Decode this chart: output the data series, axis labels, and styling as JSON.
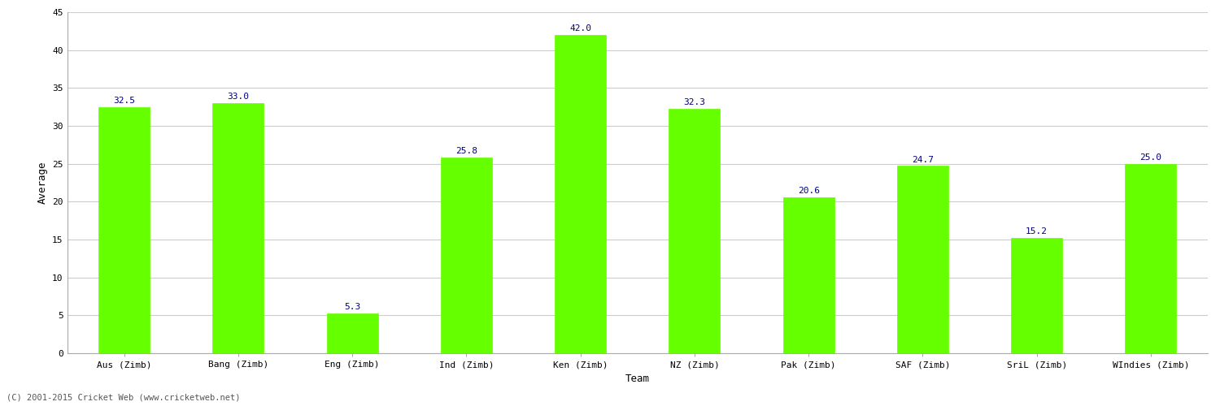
{
  "xlabel": "Team",
  "ylabel": "Average",
  "categories": [
    "Aus (Zimb)",
    "Bang (Zimb)",
    "Eng (Zimb)",
    "Ind (Zimb)",
    "Ken (Zimb)",
    "NZ (Zimb)",
    "Pak (Zimb)",
    "SAF (Zimb)",
    "SriL (Zimb)",
    "WIndies (Zimb)"
  ],
  "values": [
    32.5,
    33.0,
    5.3,
    25.8,
    42.0,
    32.3,
    20.6,
    24.7,
    15.2,
    25.0
  ],
  "bar_color": "#66ff00",
  "bar_edge_color": "#66ff00",
  "label_color": "#000080",
  "label_fontsize": 8,
  "ylim": [
    0,
    45
  ],
  "yticks": [
    0,
    5,
    10,
    15,
    20,
    25,
    30,
    35,
    40,
    45
  ],
  "grid_color": "#cccccc",
  "background_color": "#ffffff",
  "figure_background": "#ffffff",
  "axis_label_fontsize": 9,
  "tick_label_fontsize": 8,
  "bar_width": 0.45,
  "footer_text": "(C) 2001-2015 Cricket Web (www.cricketweb.net)",
  "footer_fontsize": 7.5,
  "footer_color": "#555555",
  "spine_color": "#aaaaaa"
}
